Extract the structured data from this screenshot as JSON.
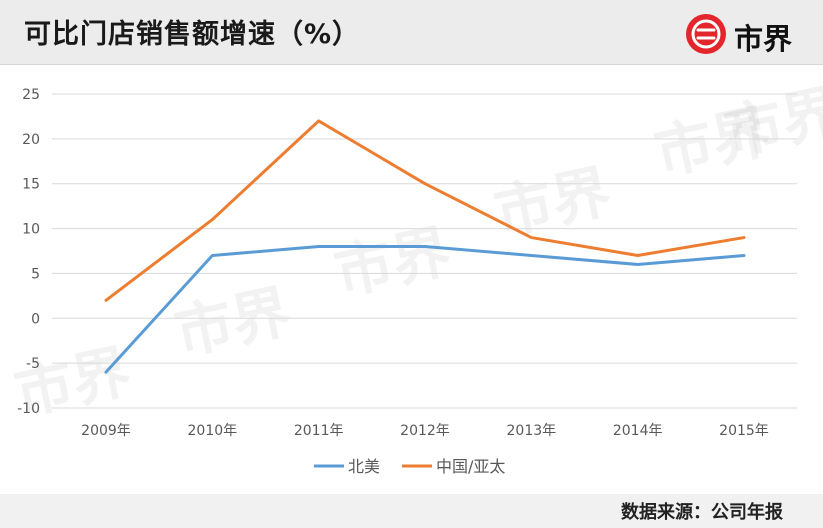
{
  "header": {
    "title": "可比门店销售额增速（%）"
  },
  "logo": {
    "text": "市界",
    "color": "#e3262b"
  },
  "footer": {
    "source": "数据来源：公司年报"
  },
  "chart_data": {
    "type": "line",
    "title": "可比门店销售额增速（%）",
    "x": [
      "2009年",
      "2010年",
      "2011年",
      "2012年",
      "2013年",
      "2014年",
      "2015年"
    ],
    "ylim": [
      -10,
      25
    ],
    "yticks": [
      25,
      20,
      15,
      10,
      5,
      0,
      -5,
      -10
    ],
    "grid": true,
    "legend": "bottom",
    "series": [
      {
        "name": "北美",
        "color": "#5b9bd5",
        "values": [
          -6,
          7,
          8,
          8,
          7,
          6,
          7
        ]
      },
      {
        "name": "中国/亚太",
        "color": "#ed7d31",
        "values": [
          2,
          11,
          22,
          15,
          9,
          7,
          9
        ]
      }
    ]
  }
}
